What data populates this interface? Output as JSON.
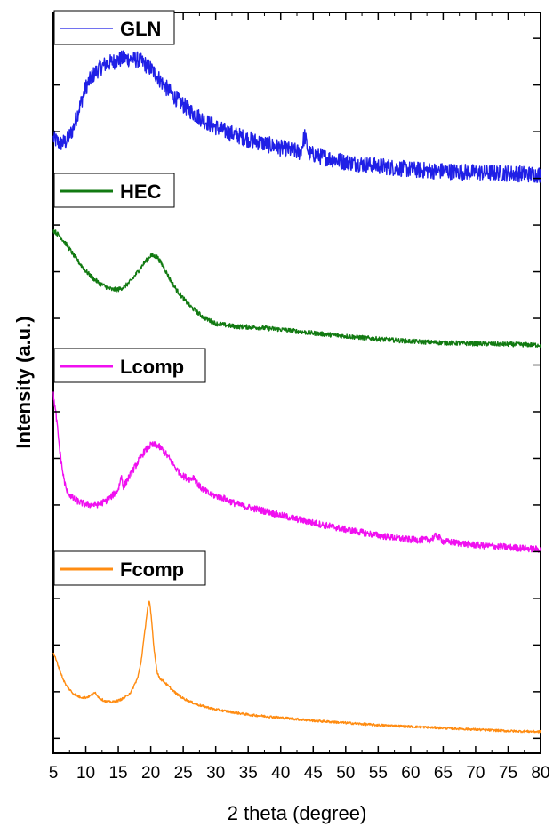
{
  "chart_data": {
    "type": "line",
    "xlabel": "2 theta (degree)",
    "ylabel": "Intensity (a.u.)",
    "xlim": [
      5,
      80
    ],
    "x_ticks": [
      5,
      10,
      15,
      20,
      25,
      30,
      35,
      40,
      45,
      50,
      55,
      60,
      65,
      70,
      75,
      80
    ],
    "x_tick_labels": [
      "5",
      "10",
      "15",
      "20",
      "25",
      "30",
      "35",
      "40",
      "45",
      "50",
      "55",
      "60",
      "65",
      "70",
      "75",
      "80"
    ],
    "y_tick_labels_shown": false,
    "ylim": [
      0,
      100
    ],
    "grid": false,
    "layout": "stacked-offset",
    "series": [
      {
        "name": "GLN",
        "color": "#1f1fe6",
        "noise": 3.2,
        "x": [
          5,
          6,
          7,
          8,
          9,
          10,
          11,
          12,
          13,
          14,
          15,
          16,
          17,
          18,
          19,
          20,
          21,
          22,
          23,
          24,
          25,
          27,
          29,
          31,
          33,
          35,
          37,
          40,
          43,
          43.7,
          44.3,
          46,
          50,
          55,
          60,
          64,
          65,
          70,
          75,
          80
        ],
        "y": [
          83.0,
          82.3,
          82.6,
          84.2,
          87.1,
          89.9,
          91.4,
          92.4,
          93.0,
          93.3,
          93.6,
          93.8,
          93.7,
          93.6,
          93.1,
          92.4,
          91.4,
          90.2,
          89.2,
          88.3,
          87.5,
          86.1,
          85.0,
          84.1,
          83.5,
          82.9,
          82.4,
          81.7,
          81.1,
          83.4,
          81.0,
          80.6,
          79.8,
          79.3,
          78.8,
          78.6,
          78.6,
          78.4,
          78.3,
          78.1
        ]
      },
      {
        "name": "HEC",
        "color": "#117a11",
        "noise": 0.9,
        "x": [
          5,
          6,
          7,
          8,
          9,
          10,
          11,
          12,
          13,
          14,
          15,
          16,
          17,
          18,
          19,
          20,
          21,
          22,
          23,
          24,
          25,
          26,
          28,
          30,
          33,
          36,
          40,
          45,
          50,
          55,
          60,
          65,
          70,
          75,
          80
        ],
        "y": [
          70.6,
          69.8,
          68.7,
          67.4,
          66.2,
          65.1,
          64.2,
          63.5,
          63.0,
          62.6,
          62.6,
          63.0,
          63.8,
          65.0,
          66.2,
          67.2,
          67.0,
          65.6,
          63.9,
          62.5,
          61.4,
          60.4,
          58.9,
          58.0,
          57.6,
          57.5,
          57.2,
          56.7,
          56.3,
          55.9,
          55.6,
          55.4,
          55.3,
          55.2,
          55.1
        ]
      },
      {
        "name": "Lcomp",
        "color": "#f010f0",
        "noise": 1.3,
        "x": [
          5,
          5.5,
          6,
          6.5,
          7,
          8,
          9,
          10,
          11,
          12,
          13,
          14,
          15,
          15.5,
          15.8,
          16.2,
          17,
          18,
          19,
          20,
          21,
          22,
          23,
          24,
          25,
          26,
          26.6,
          27.5,
          29,
          31,
          33,
          35,
          38,
          40,
          45,
          50,
          55,
          60,
          63,
          64,
          65,
          70,
          75,
          80
        ],
        "y": [
          48.4,
          45.0,
          40.8,
          37.6,
          35.5,
          34.4,
          33.9,
          33.6,
          33.5,
          33.6,
          34.0,
          34.7,
          35.6,
          37.5,
          35.8,
          36.6,
          37.8,
          39.3,
          40.7,
          41.6,
          41.6,
          40.8,
          39.6,
          38.3,
          37.4,
          37.0,
          37.3,
          36.0,
          35.0,
          34.5,
          33.7,
          33.2,
          32.6,
          32.1,
          31.1,
          30.2,
          29.4,
          28.8,
          28.8,
          29.4,
          28.6,
          28.1,
          27.8,
          27.5
        ]
      },
      {
        "name": "Fcomp",
        "color": "#ff8c12",
        "noise": 0.45,
        "x": [
          5,
          5.5,
          6,
          6.5,
          7,
          8,
          9,
          10,
          11,
          11.5,
          12,
          13,
          14,
          15,
          16,
          17,
          18,
          18.5,
          19,
          19.5,
          19.8,
          20.1,
          20.5,
          21,
          21.5,
          22,
          23,
          24,
          25,
          27,
          30,
          35,
          40,
          45,
          50,
          55,
          60,
          65,
          70,
          75,
          80
        ],
        "y": [
          13.6,
          12.4,
          11.2,
          10.0,
          9.1,
          8.1,
          7.6,
          7.5,
          7.9,
          8.2,
          7.5,
          7.0,
          6.9,
          7.1,
          7.5,
          8.3,
          10.2,
          12.3,
          15.8,
          19.5,
          20.5,
          18.2,
          14.1,
          10.8,
          10.0,
          9.7,
          8.8,
          8.0,
          7.4,
          6.6,
          5.9,
          5.2,
          4.8,
          4.4,
          4.1,
          3.8,
          3.6,
          3.4,
          3.2,
          3.0,
          2.9
        ]
      }
    ]
  }
}
